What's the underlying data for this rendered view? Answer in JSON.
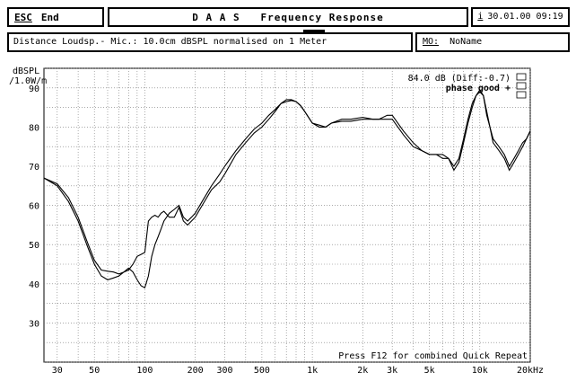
{
  "header": {
    "esc_key": "ESC",
    "esc_label": "End",
    "title": "D A A S   Frequency Response",
    "info_key": "i",
    "datetime": "30.01.00 09:19"
  },
  "info": {
    "description": "Distance Loudsp.- Mic.: 10.0cm dBSPL normalised on 1 Meter",
    "mo_key": "MO:",
    "mo_value": "NoName"
  },
  "chart_data": {
    "type": "line",
    "ylabel": "dBSPL",
    "ylabel_unit": "/1.0W/m",
    "xscale": "log",
    "xlim": [
      25,
      20000
    ],
    "ylim": [
      20,
      95
    ],
    "x_ticks": [
      30,
      50,
      100,
      200,
      300,
      500,
      1000,
      2000,
      3000,
      5000,
      10000,
      20000
    ],
    "x_tick_labels": [
      "30",
      "50",
      "100",
      "200",
      "300",
      "500",
      "1k",
      "2k",
      "3k",
      "5k",
      "10k",
      "20kHz"
    ],
    "y_ticks": [
      30,
      40,
      50,
      60,
      70,
      80,
      90
    ],
    "y_tick_labels": [
      "30",
      "40",
      "50",
      "60",
      "70",
      "80",
      "90"
    ],
    "grid": true,
    "annotation_level": "84.0 dB (Diff:-0.7)",
    "annotation_phase": "phase good +",
    "footer_hint": "Press F12 for combined Quick Repeat",
    "series": [
      {
        "x": [
          25,
          30,
          35,
          40,
          45,
          50,
          55,
          60,
          65,
          70,
          75,
          80,
          85,
          90,
          95,
          100,
          105,
          110,
          115,
          120,
          125,
          130,
          140,
          150,
          160,
          170,
          180,
          190,
          200,
          220,
          250,
          280,
          300,
          350,
          400,
          450,
          500,
          550,
          600,
          650,
          700,
          750,
          800,
          850,
          900,
          1000,
          1100,
          1200,
          1300,
          1500,
          1700,
          2000,
          2300,
          2500,
          2800,
          3000,
          3500,
          4000,
          4500,
          5000,
          5500,
          6000,
          6500,
          7000,
          7500,
          8000,
          8500,
          9000,
          9500,
          10000,
          10500,
          11000,
          12000,
          13000,
          14000,
          15000,
          16000,
          17000,
          18000,
          19000,
          20000
        ],
        "values": [
          67,
          65.5,
          62,
          57,
          51,
          46,
          43.5,
          43.2,
          43,
          42.5,
          43,
          43.5,
          45,
          47,
          47.5,
          48,
          56,
          57,
          57.5,
          57,
          58,
          58.5,
          57,
          57,
          59.5,
          56,
          55,
          56,
          57,
          60,
          64,
          66,
          68,
          73,
          76,
          78.5,
          80,
          82,
          84,
          86,
          87,
          87,
          86.5,
          85.5,
          84,
          81,
          80,
          80,
          81,
          82,
          82,
          82.5,
          82,
          82,
          83,
          83,
          79,
          76,
          74,
          73,
          73,
          73,
          72,
          70,
          72,
          77,
          82,
          86,
          88,
          89,
          88,
          83,
          77,
          75,
          73,
          70,
          72,
          74,
          76,
          77,
          79
        ]
      },
      {
        "x": [
          25,
          30,
          35,
          40,
          45,
          50,
          55,
          60,
          65,
          70,
          75,
          80,
          85,
          90,
          95,
          100,
          105,
          110,
          115,
          120,
          125,
          130,
          140,
          150,
          160,
          170,
          180,
          190,
          200,
          220,
          250,
          280,
          300,
          350,
          400,
          450,
          500,
          550,
          600,
          650,
          700,
          750,
          800,
          850,
          900,
          1000,
          1100,
          1200,
          1300,
          1500,
          1700,
          2000,
          2300,
          2500,
          2800,
          3000,
          3500,
          4000,
          4500,
          5000,
          5500,
          6000,
          6500,
          7000,
          7500,
          8000,
          8500,
          9000,
          9500,
          10000,
          10500,
          11000,
          12000,
          13000,
          14000,
          15000,
          16000,
          17000,
          18000,
          19000,
          20000
        ],
        "values": [
          67,
          65,
          61,
          56,
          50,
          45,
          42,
          41,
          41.5,
          42,
          43,
          44,
          43,
          41,
          39.5,
          39,
          42,
          47,
          50,
          52,
          54,
          56,
          58,
          59,
          60,
          57,
          56,
          57,
          58,
          61,
          65,
          68,
          70,
          74,
          77,
          79.5,
          81,
          83,
          84.5,
          86,
          86.5,
          86.8,
          86.5,
          85.5,
          84,
          81,
          80.5,
          80,
          81,
          81.5,
          81.5,
          82,
          82,
          82,
          82,
          82,
          78,
          75,
          74,
          73,
          73,
          72,
          72,
          69,
          71,
          76,
          81,
          85,
          88,
          89.5,
          88,
          84,
          76,
          74,
          72,
          69,
          71,
          73,
          75,
          77,
          79
        ]
      }
    ]
  }
}
